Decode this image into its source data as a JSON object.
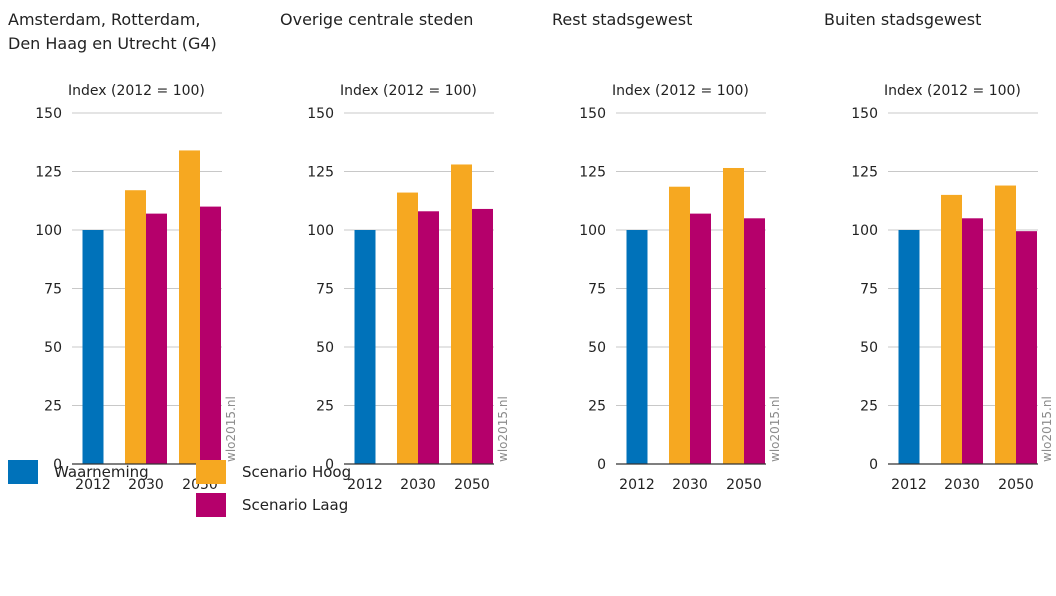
{
  "colors": {
    "observed": "#0072ba",
    "high": "#f6a821",
    "low": "#b5006b",
    "grid": "#c8c8c8",
    "axis": "#333333",
    "watermark": "#8c8c8c"
  },
  "chart_data": [
    {
      "type": "bar",
      "title": [
        "Amsterdam, Rotterdam,",
        "Den Haag en Utrecht (G4)"
      ],
      "ylabel": "Index (2012 = 100)",
      "ylim": [
        0,
        150
      ],
      "yticks": [
        0,
        25,
        50,
        75,
        100,
        125,
        150
      ],
      "categories": [
        "2012",
        "2030",
        "2050"
      ],
      "series": [
        {
          "name": "Waarneming",
          "values": [
            100,
            null,
            null
          ]
        },
        {
          "name": "Scenario Hoog",
          "values": [
            null,
            117,
            134
          ]
        },
        {
          "name": "Scenario Laag",
          "values": [
            null,
            107,
            110
          ]
        }
      ],
      "watermark": "wlo2015.nl"
    },
    {
      "type": "bar",
      "title": [
        "Overige centrale steden"
      ],
      "ylabel": "Index (2012 = 100)",
      "ylim": [
        0,
        150
      ],
      "yticks": [
        0,
        25,
        50,
        75,
        100,
        125,
        150
      ],
      "categories": [
        "2012",
        "2030",
        "2050"
      ],
      "series": [
        {
          "name": "Waarneming",
          "values": [
            100,
            null,
            null
          ]
        },
        {
          "name": "Scenario Hoog",
          "values": [
            null,
            116,
            128
          ]
        },
        {
          "name": "Scenario Laag",
          "values": [
            null,
            108,
            109
          ]
        }
      ],
      "watermark": "wlo2015.nl"
    },
    {
      "type": "bar",
      "title": [
        "Rest stadsgewest"
      ],
      "ylabel": "Index (2012 = 100)",
      "ylim": [
        0,
        150
      ],
      "yticks": [
        0,
        25,
        50,
        75,
        100,
        125,
        150
      ],
      "categories": [
        "2012",
        "2030",
        "2050"
      ],
      "series": [
        {
          "name": "Waarneming",
          "values": [
            100,
            null,
            null
          ]
        },
        {
          "name": "Scenario Hoog",
          "values": [
            null,
            118.5,
            126.5
          ]
        },
        {
          "name": "Scenario Laag",
          "values": [
            null,
            107,
            105
          ]
        }
      ],
      "watermark": "wlo2015.nl"
    },
    {
      "type": "bar",
      "title": [
        "Buiten stadsgewest"
      ],
      "ylabel": "Index (2012 = 100)",
      "ylim": [
        0,
        150
      ],
      "yticks": [
        0,
        25,
        50,
        75,
        100,
        125,
        150
      ],
      "categories": [
        "2012",
        "2030",
        "2050"
      ],
      "series": [
        {
          "name": "Waarneming",
          "values": [
            100,
            null,
            null
          ]
        },
        {
          "name": "Scenario Hoog",
          "values": [
            null,
            115,
            119
          ]
        },
        {
          "name": "Scenario Laag",
          "values": [
            null,
            105,
            99.5
          ]
        }
      ],
      "watermark": "wlo2015.nl"
    }
  ],
  "legend": [
    {
      "label": "Waarneming",
      "color": "#0072ba"
    },
    {
      "label": "Scenario Hoog",
      "color": "#f6a821"
    },
    {
      "label": "Scenario Laag",
      "color": "#b5006b"
    }
  ]
}
